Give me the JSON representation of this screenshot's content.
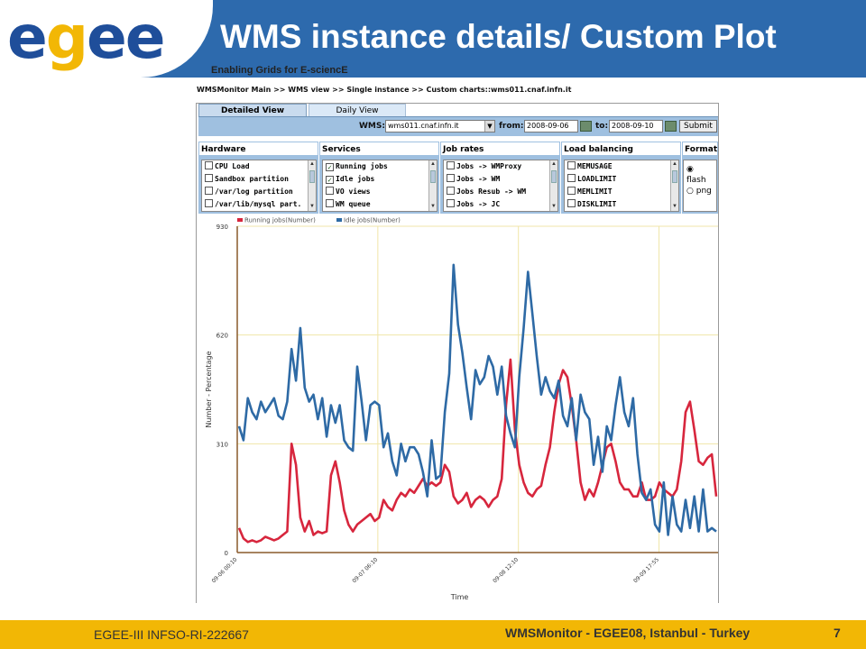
{
  "header": {
    "logo_letters": [
      "e",
      "g",
      "e",
      "e"
    ],
    "logo_subtitle": "Enabling Grids for E-sciencE",
    "title": "WMS instance details/ Custom Plot"
  },
  "breadcrumb": "WMSMonitor Main >> WMS view >> Single instance >> Custom charts::wms011.cnaf.infn.it",
  "tabs": {
    "detailed": "Detailed View",
    "daily": "Daily View"
  },
  "toolbar": {
    "wms_label": "WMS:",
    "wms_value": "wms011.cnaf.infn.it",
    "from_label": "from:",
    "from_value": "2008-09-06",
    "to_label": "to:",
    "to_value": "2008-09-10",
    "submit_label": "Submit"
  },
  "selectors": {
    "hardware": {
      "title": "Hardware",
      "items": [
        "CPU Load",
        "Sandbox partition",
        "/var/log partition",
        "/var/lib/mysql part."
      ],
      "checked": [
        false,
        false,
        false,
        false
      ]
    },
    "services": {
      "title": "Services",
      "items": [
        "Running jobs",
        "Idle jobs",
        "VO views",
        "WM queue"
      ],
      "checked": [
        true,
        true,
        false,
        false
      ]
    },
    "job_rates": {
      "title": "Job rates",
      "items": [
        "Jobs -> WMProxy",
        "Jobs -> WM",
        "Jobs Resub -> WM",
        "Jobs -> JC"
      ],
      "checked": [
        false,
        false,
        false,
        false
      ]
    },
    "load_balancing": {
      "title": "Load balancing",
      "items": [
        "MEMUSAGE",
        "LOADLIMIT",
        "MEMLIMIT",
        "DISKLIMIT"
      ],
      "checked": [
        false,
        false,
        false,
        false
      ]
    },
    "format": {
      "title": "Format",
      "options": [
        "flash",
        "png"
      ],
      "selected": "flash"
    }
  },
  "chart_data": {
    "type": "line",
    "xlabel": "Time",
    "ylabel": "Number - Percentage",
    "ylim": [
      0,
      930
    ],
    "yticks": [
      0,
      310,
      620,
      930
    ],
    "xticks": [
      "09-06 00:10",
      "09-07 06:10",
      "09-08 12:10",
      "09-09 17:55"
    ],
    "grid": true,
    "legend_position": "top-left",
    "series": [
      {
        "name": "Running jobs(Number)",
        "color": "#d7263d",
        "values": [
          70,
          40,
          30,
          35,
          30,
          35,
          45,
          40,
          35,
          40,
          50,
          60,
          310,
          250,
          100,
          60,
          90,
          50,
          60,
          55,
          60,
          220,
          260,
          200,
          120,
          80,
          60,
          80,
          90,
          100,
          110,
          90,
          100,
          150,
          130,
          120,
          150,
          170,
          160,
          180,
          170,
          190,
          210,
          190,
          200,
          190,
          200,
          250,
          230,
          160,
          140,
          150,
          170,
          130,
          150,
          160,
          150,
          130,
          150,
          160,
          210,
          420,
          550,
          350,
          250,
          200,
          170,
          160,
          180,
          190,
          250,
          300,
          400,
          480,
          520,
          500,
          420,
          320,
          200,
          150,
          180,
          160,
          200,
          250,
          300,
          310,
          260,
          200,
          180,
          180,
          160,
          160,
          200,
          150,
          150,
          160,
          200,
          180,
          170,
          160,
          180,
          260,
          400,
          430,
          350,
          260,
          250,
          270,
          280,
          160
        ]
      },
      {
        "name": "Idle jobs(Number)",
        "color": "#2e6aa5",
        "values": [
          360,
          320,
          440,
          400,
          380,
          430,
          400,
          420,
          440,
          390,
          380,
          430,
          580,
          490,
          640,
          470,
          430,
          450,
          380,
          440,
          330,
          420,
          370,
          420,
          320,
          300,
          290,
          530,
          430,
          320,
          420,
          430,
          420,
          300,
          340,
          260,
          220,
          310,
          260,
          300,
          300,
          280,
          230,
          160,
          320,
          210,
          220,
          400,
          510,
          820,
          650,
          570,
          470,
          380,
          520,
          480,
          500,
          560,
          530,
          450,
          530,
          390,
          340,
          300,
          500,
          640,
          800,
          680,
          560,
          450,
          500,
          460,
          440,
          490,
          390,
          360,
          440,
          320,
          450,
          400,
          380,
          250,
          330,
          230,
          360,
          320,
          420,
          500,
          400,
          360,
          440,
          280,
          170,
          150,
          180,
          80,
          60,
          200,
          50,
          160,
          80,
          60,
          150,
          70,
          160,
          60,
          180,
          60,
          70,
          60
        ]
      }
    ]
  },
  "footer": {
    "left": "EGEE-III INFSO-RI-222667",
    "right": "WMSMonitor -  EGEE08, Istanbul - Turkey",
    "page": "7"
  }
}
